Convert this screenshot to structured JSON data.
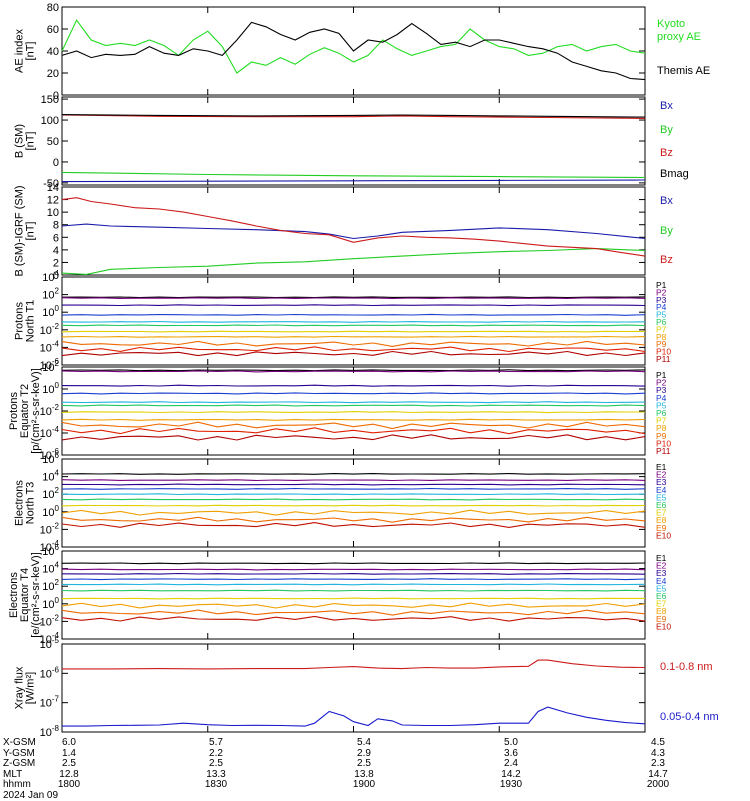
{
  "chart_data": [
    {
      "type": "line",
      "ylabel_lines": [
        "AE index",
        "[nT]"
      ],
      "ylim": [
        0,
        80
      ],
      "yticks": [
        "0",
        "20",
        "40",
        "60",
        "80"
      ],
      "xlim": [
        0,
        120
      ],
      "series": [
        {
          "name": "Kyoto proxy AE",
          "color": "#22dd22",
          "x": [
            0,
            3,
            6,
            9,
            12,
            15,
            18,
            21,
            24,
            27,
            30,
            33,
            36,
            39,
            42,
            45,
            48,
            51,
            54,
            57,
            60,
            63,
            66,
            69,
            72,
            75,
            78,
            81,
            84,
            87,
            90,
            93,
            96,
            99,
            102,
            105,
            108,
            111,
            114,
            117,
            120
          ],
          "y": [
            40,
            68,
            50,
            45,
            47,
            45,
            50,
            45,
            36,
            50,
            58,
            44,
            20,
            30,
            27,
            34,
            28,
            37,
            43,
            38,
            30,
            36,
            50,
            42,
            36,
            40,
            44,
            46,
            60,
            50,
            44,
            42,
            36,
            38,
            44,
            46,
            40,
            44,
            46,
            40,
            38
          ]
        },
        {
          "name": "Themis AE",
          "color": "#000000",
          "x": [
            0,
            3,
            6,
            9,
            12,
            15,
            18,
            21,
            24,
            27,
            30,
            33,
            36,
            39,
            42,
            45,
            48,
            51,
            54,
            57,
            60,
            63,
            66,
            69,
            72,
            75,
            78,
            81,
            84,
            87,
            90,
            93,
            96,
            99,
            102,
            105,
            108,
            111,
            114,
            117,
            120
          ],
          "y": [
            36,
            40,
            34,
            37,
            36,
            37,
            44,
            38,
            36,
            42,
            40,
            36,
            50,
            66,
            62,
            55,
            50,
            57,
            60,
            56,
            40,
            50,
            48,
            55,
            65,
            56,
            46,
            48,
            44,
            50,
            50,
            47,
            44,
            42,
            38,
            30,
            26,
            22,
            20,
            15,
            14
          ]
        }
      ],
      "legend": [
        "Kyoto",
        "proxy AE",
        "Themis AE"
      ]
    },
    {
      "type": "line",
      "ylabel_lines": [
        "B  (SM)",
        "[nT]"
      ],
      "ylim": [
        -55,
        155
      ],
      "yticks": [
        "-50",
        "0",
        "50",
        "100",
        "150"
      ],
      "xlim": [
        0,
        120
      ],
      "series": [
        {
          "name": "Bx",
          "color": "#1a1aaa",
          "x": [
            0,
            30,
            60,
            90,
            120
          ],
          "y": [
            -47,
            -46,
            -45,
            -44,
            -43
          ]
        },
        {
          "name": "By",
          "color": "#22cc22",
          "x": [
            0,
            30,
            60,
            90,
            120
          ],
          "y": [
            -25,
            -30,
            -33,
            -35,
            -37
          ]
        },
        {
          "name": "Bz",
          "color": "#cc1a1a",
          "x": [
            0,
            20,
            40,
            60,
            70,
            80,
            90,
            100,
            120
          ],
          "y": [
            112,
            109,
            108,
            108,
            110,
            108,
            107,
            106,
            104
          ]
        },
        {
          "name": "Bmag",
          "color": "#000000",
          "x": [
            0,
            20,
            40,
            60,
            70,
            80,
            90,
            100,
            120
          ],
          "y": [
            113,
            111,
            110,
            111,
            112,
            111,
            110,
            109,
            107
          ]
        }
      ],
      "legend": [
        "Bx",
        "By",
        "Bz",
        "Bmag"
      ]
    },
    {
      "type": "line",
      "ylabel_lines": [
        "B (SM)-IGRF (SM)",
        "[nT]"
      ],
      "ylim": [
        0,
        14
      ],
      "yticks": [
        "0",
        "2",
        "4",
        "6",
        "8",
        "10",
        "12",
        "14"
      ],
      "xlim": [
        0,
        120
      ],
      "series": [
        {
          "name": "Bx",
          "color": "#1a1aaa",
          "x": [
            0,
            5,
            10,
            20,
            30,
            40,
            50,
            55,
            60,
            65,
            70,
            80,
            90,
            100,
            110,
            120
          ],
          "y": [
            7.8,
            8.1,
            7.8,
            7.6,
            7.4,
            7.2,
            6.9,
            6.5,
            5.8,
            6.2,
            6.8,
            7.1,
            7.5,
            7.2,
            6.6,
            5.8
          ]
        },
        {
          "name": "By",
          "color": "#22cc22",
          "x": [
            0,
            5,
            10,
            20,
            30,
            40,
            50,
            60,
            70,
            80,
            90,
            100,
            110,
            120
          ],
          "y": [
            0.3,
            0.1,
            0.9,
            1.2,
            1.4,
            1.9,
            2.1,
            2.6,
            3.0,
            3.4,
            3.7,
            3.9,
            4.2,
            3.9
          ]
        },
        {
          "name": "Bz",
          "color": "#cc1a1a",
          "x": [
            0,
            3,
            6,
            10,
            15,
            20,
            25,
            30,
            35,
            40,
            45,
            50,
            55,
            60,
            65,
            70,
            75,
            80,
            85,
            90,
            95,
            100,
            105,
            110,
            115,
            120
          ],
          "y": [
            12.0,
            12.3,
            11.7,
            11.3,
            10.7,
            10.5,
            10.0,
            9.3,
            8.6,
            7.8,
            7.1,
            6.6,
            6.4,
            5.2,
            5.9,
            6.2,
            6.0,
            5.9,
            5.7,
            5.4,
            5.0,
            4.6,
            4.4,
            4.2,
            3.6,
            3.0
          ]
        }
      ],
      "legend": [
        "Bx",
        "By",
        "Bz"
      ]
    },
    {
      "type": "line",
      "ylabel_lines": [
        "Protons",
        "North T1"
      ],
      "log_y": true,
      "ylim_exp": [
        -6,
        4
      ],
      "yticks": [
        "10^4",
        "10^2",
        "10^0",
        "10^-2",
        "10^-4",
        "10^-6"
      ],
      "xlim": [
        0,
        120
      ],
      "series": [
        {
          "name": "P1",
          "color": "#000000",
          "y": 1.7
        },
        {
          "name": "P2",
          "color": "#7a0080",
          "y": 1.6
        },
        {
          "name": "P3",
          "color": "#2a0090",
          "y": 0.8
        },
        {
          "name": "P4",
          "color": "#1a3fd0",
          "y": -0.3
        },
        {
          "name": "P5",
          "color": "#20b4e0",
          "y": -1.1
        },
        {
          "name": "P6",
          "color": "#22c860",
          "y": -1.5
        },
        {
          "name": "P7",
          "color": "#e0d000",
          "y": -2.2
        },
        {
          "name": "P8",
          "color": "#f0a000",
          "y": -2.8
        },
        {
          "name": "P9",
          "color": "#ee6a00",
          "y": -3.6
        },
        {
          "name": "P10",
          "color": "#e02000",
          "y": -4.2
        },
        {
          "name": "P11",
          "color": "#b00000",
          "y": -4.7
        }
      ],
      "legend": [
        "P1",
        "P2",
        "P3",
        "P4",
        "P5",
        "P6",
        "P7",
        "P8",
        "P9",
        "P10",
        "P11"
      ]
    },
    {
      "type": "line",
      "ylabel_lines": [
        "Protons",
        "Equator T2",
        "[p/(cm^2-s-sr-keV)]"
      ],
      "log_y": true,
      "ylim_exp": [
        -6,
        2
      ],
      "yticks": [
        "10^2",
        "10^0",
        "10^-2",
        "10^-4",
        "10^-6"
      ],
      "xlim": [
        0,
        120
      ],
      "series": [
        {
          "name": "P1",
          "color": "#000000",
          "y": 1.7
        },
        {
          "name": "P2",
          "color": "#7a0080",
          "y": 1.6
        },
        {
          "name": "P3",
          "color": "#2a0090",
          "y": 0.3
        },
        {
          "name": "P4",
          "color": "#1a3fd0",
          "y": -0.4
        },
        {
          "name": "P5",
          "color": "#20b4e0",
          "y": -1.2
        },
        {
          "name": "P6",
          "color": "#22c860",
          "y": -1.5
        },
        {
          "name": "P7",
          "color": "#e0d000",
          "y": -2.1
        },
        {
          "name": "P8",
          "color": "#f0a000",
          "y": -2.8
        },
        {
          "name": "P9",
          "color": "#ee6a00",
          "y": -3.3
        },
        {
          "name": "P10",
          "color": "#e02000",
          "y": -3.8
        },
        {
          "name": "P11",
          "color": "#b00000",
          "y": -4.4
        }
      ],
      "legend": [
        "P1",
        "P2",
        "P3",
        "P4",
        "P5",
        "P6",
        "P7",
        "P8",
        "P9",
        "P10",
        "P11"
      ]
    },
    {
      "type": "line",
      "ylabel_lines": [
        "Electrons",
        "North T3"
      ],
      "log_y": true,
      "ylim_exp": [
        -4,
        6
      ],
      "yticks": [
        "10^6",
        "10^4",
        "10^2",
        "10^0",
        "10^-2",
        "10^-4"
      ],
      "xlim": [
        0,
        120
      ],
      "series": [
        {
          "name": "E1",
          "color": "#000000",
          "y": 4.3
        },
        {
          "name": "E2",
          "color": "#7a0080",
          "y": 3.6
        },
        {
          "name": "E3",
          "color": "#2a0090",
          "y": 3.1
        },
        {
          "name": "E4",
          "color": "#1a3fd0",
          "y": 2.6
        },
        {
          "name": "E5",
          "color": "#20b4e0",
          "y": 2.0
        },
        {
          "name": "E6",
          "color": "#22c860",
          "y": 1.4
        },
        {
          "name": "E7",
          "color": "#e0d000",
          "y": 0.7
        },
        {
          "name": "E8",
          "color": "#f0a000",
          "y": -0.1
        },
        {
          "name": "E9",
          "color": "#ee6a00",
          "y": -0.9
        },
        {
          "name": "E10",
          "color": "#c01000",
          "y": -1.5
        }
      ],
      "legend": [
        "E1",
        "E2",
        "E3",
        "E4",
        "E5",
        "E6",
        "E7",
        "E8",
        "E9",
        "E10"
      ]
    },
    {
      "type": "line",
      "ylabel_lines": [
        "Electrons",
        "Equator T4",
        "[e/(cm^2-s-sr-keV)]"
      ],
      "log_y": true,
      "ylim_exp": [
        -4,
        6
      ],
      "yticks": [
        "10^6",
        "10^4",
        "10^2",
        "10^0",
        "10^-2",
        "10^-4"
      ],
      "xlim": [
        0,
        120
      ],
      "series": [
        {
          "name": "E1",
          "color": "#000000",
          "y": 4.6
        },
        {
          "name": "E2",
          "color": "#7a0080",
          "y": 3.9
        },
        {
          "name": "E3",
          "color": "#2a0090",
          "y": 3.4
        },
        {
          "name": "E4",
          "color": "#1a3fd0",
          "y": 2.8
        },
        {
          "name": "E5",
          "color": "#20b4e0",
          "y": 2.2
        },
        {
          "name": "E6",
          "color": "#22c860",
          "y": 1.5
        },
        {
          "name": "E7",
          "color": "#e0d000",
          "y": 0.6
        },
        {
          "name": "E8",
          "color": "#f0a000",
          "y": -0.2
        },
        {
          "name": "E9",
          "color": "#ee6a00",
          "y": -1.0
        },
        {
          "name": "E10",
          "color": "#c01000",
          "y": -1.7
        }
      ],
      "legend": [
        "E1",
        "E2",
        "E3",
        "E4",
        "E5",
        "E6",
        "E7",
        "E8",
        "E9",
        "E10"
      ]
    },
    {
      "type": "line",
      "ylabel_lines": [
        "Xray flux",
        "[W/m^2]"
      ],
      "log_y": true,
      "ylim_exp": [
        -8,
        -5
      ],
      "yticks": [
        "10^-5",
        "10^-6",
        "10^-7",
        "10^-8"
      ],
      "xlim": [
        0,
        120
      ],
      "series": [
        {
          "name": "0.1-0.8 nm",
          "color": "#cc1a1a",
          "x": [
            0,
            10,
            20,
            30,
            40,
            50,
            55,
            60,
            65,
            70,
            75,
            80,
            85,
            90,
            96,
            98,
            100,
            105,
            110,
            115,
            120
          ],
          "y": [
            -5.85,
            -5.85,
            -5.84,
            -5.85,
            -5.84,
            -5.84,
            -5.8,
            -5.77,
            -5.82,
            -5.84,
            -5.8,
            -5.82,
            -5.82,
            -5.78,
            -5.76,
            -5.55,
            -5.55,
            -5.67,
            -5.75,
            -5.79,
            -5.8
          ]
        },
        {
          "name": "0.05-0.4 nm",
          "color": "#1a1acc",
          "x": [
            0,
            5,
            10,
            15,
            20,
            25,
            30,
            35,
            40,
            45,
            50,
            52,
            55,
            58,
            60,
            63,
            65,
            68,
            70,
            75,
            80,
            85,
            90,
            96,
            98,
            100,
            104,
            108,
            112,
            116,
            120
          ],
          "y": [
            -7.8,
            -7.8,
            -7.78,
            -7.77,
            -7.76,
            -7.7,
            -7.75,
            -7.78,
            -7.77,
            -7.78,
            -7.8,
            -7.7,
            -7.3,
            -7.45,
            -7.65,
            -7.78,
            -7.55,
            -7.62,
            -7.76,
            -7.78,
            -7.78,
            -7.75,
            -7.7,
            -7.7,
            -7.3,
            -7.15,
            -7.35,
            -7.5,
            -7.6,
            -7.68,
            -7.72
          ]
        }
      ],
      "legend": [
        "0.1-0.8 nm",
        "0.05-0.4 nm"
      ]
    }
  ],
  "ephemeris": {
    "rows": [
      {
        "label": "X-GSM",
        "values": [
          "6.0",
          "5.7",
          "5.4",
          "5.0",
          "4.5"
        ]
      },
      {
        "label": "Y-GSM",
        "values": [
          "1.4",
          "2.2",
          "2.9",
          "3.6",
          "4.3"
        ]
      },
      {
        "label": "Z-GSM",
        "values": [
          "2.5",
          "2.5",
          "2.5",
          "2.4",
          "2.3"
        ]
      },
      {
        "label": "MLT",
        "values": [
          "12.8",
          "13.3",
          "13.8",
          "14.2",
          "14.7"
        ]
      },
      {
        "label": "hhmm",
        "values": [
          "1800",
          "1830",
          "1900",
          "1930",
          "2000"
        ]
      }
    ],
    "date": "2024 Jan 09"
  }
}
